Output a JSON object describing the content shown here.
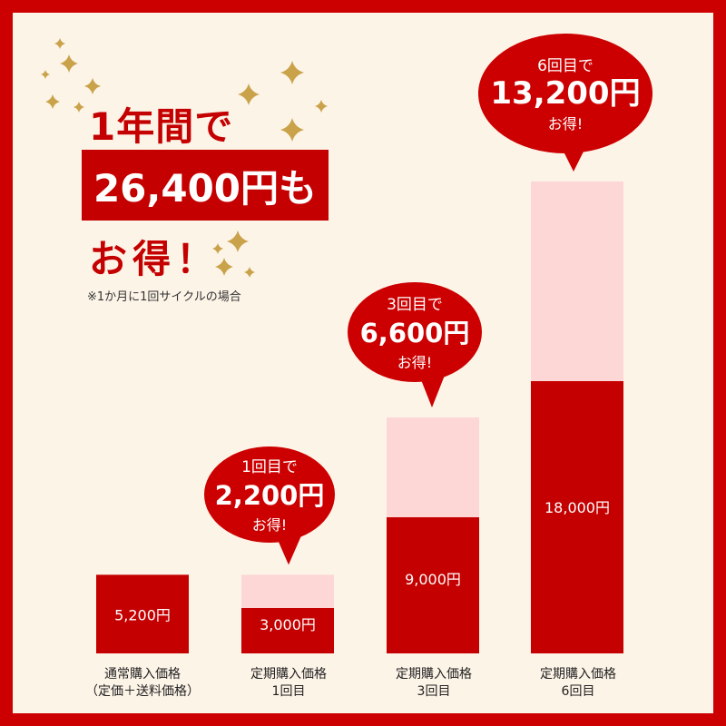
{
  "headline": {
    "top": "1年間で",
    "highlight": "26,400円も",
    "bottom": "お得！",
    "note": "※1か月に1回サイクルの場合"
  },
  "colors": {
    "accent": "#cc0000",
    "bar_paid": "#c40000",
    "bar_savings": "#fdd6d6",
    "background": "#fdf4e8",
    "sparkle": "#c9a24a"
  },
  "chart_data": {
    "type": "bar",
    "stacked": true,
    "categories": [
      {
        "line1": "通常購入価格",
        "line2": "（定価＋送料価格）"
      },
      {
        "line1": "定期購入価格",
        "line2": "1回目"
      },
      {
        "line1": "定期購入価格",
        "line2": "3回目"
      },
      {
        "line1": "定期購入価格",
        "line2": "6回目"
      }
    ],
    "series": [
      {
        "values": [
          5200,
          3000,
          9000,
          18000
        ],
        "labels": [
          "5,200円",
          "3,000円",
          "9,000円",
          "18,000円"
        ]
      },
      {
        "values": [
          0,
          2200,
          6600,
          13200
        ]
      }
    ],
    "callouts": [
      null,
      {
        "line1": "1回目で",
        "line2": "2,200円",
        "line3": "お得!"
      },
      {
        "line1": "3回目で",
        "line2": "6,600円",
        "line3": "お得!"
      },
      {
        "line1": "6回目で",
        "line2": "13,200円",
        "line3": "お得!"
      }
    ],
    "ylim": [
      0,
      31200
    ],
    "grid": false
  }
}
